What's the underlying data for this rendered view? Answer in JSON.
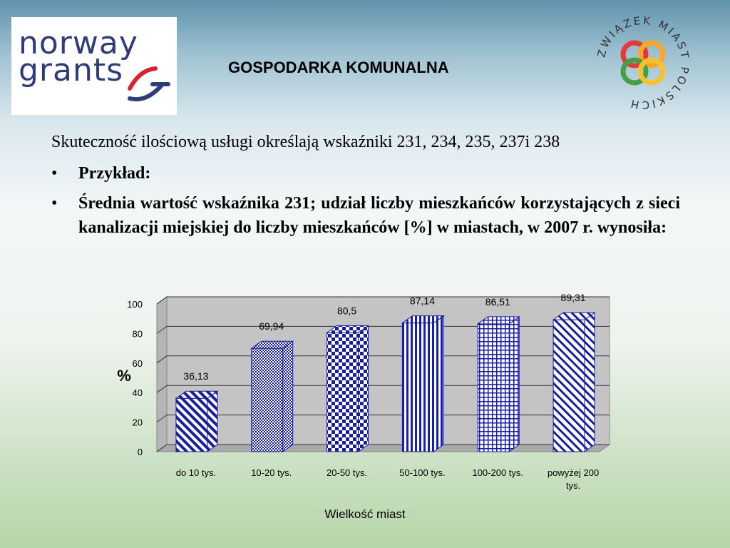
{
  "header": {
    "title": "GOSPODARKA KOMUNALNA",
    "left_logo_lines": [
      "norway",
      "grants"
    ],
    "right_logo_text": "ZWIĄZEK MIAST POLSKICH"
  },
  "body": {
    "intro": "Skuteczność ilościową usługi określają wskaźniki 231, 234, 235, 237i 238",
    "bullets": [
      "Przykład:",
      "Średnia wartość wskaźnika 231; udział liczby mieszkańców korzystających z sieci kanalizacji miejskiej do liczby mieszkańców [%] w miastach, w 2007 r. wynosiła:"
    ]
  },
  "chart_data": {
    "type": "bar",
    "categories": [
      "do 10 tys.",
      "10-20 tys.",
      "20-50 tys.",
      "50-100 tys.",
      "100-200 tys.",
      "powyżej 200 tys."
    ],
    "values": [
      36.13,
      69.94,
      80.5,
      87.14,
      86.51,
      89.31
    ],
    "data_labels": [
      "36,13",
      "69,94",
      "80,5",
      "87,14",
      "86,51",
      "89,31"
    ],
    "xlabel": "Wielkość miast",
    "ylabel": "%",
    "ylim": [
      0,
      100
    ],
    "yticks": [
      "0",
      "20",
      "40",
      "60",
      "80",
      "100"
    ],
    "grid": true,
    "style": "3d-bars-patterned"
  }
}
